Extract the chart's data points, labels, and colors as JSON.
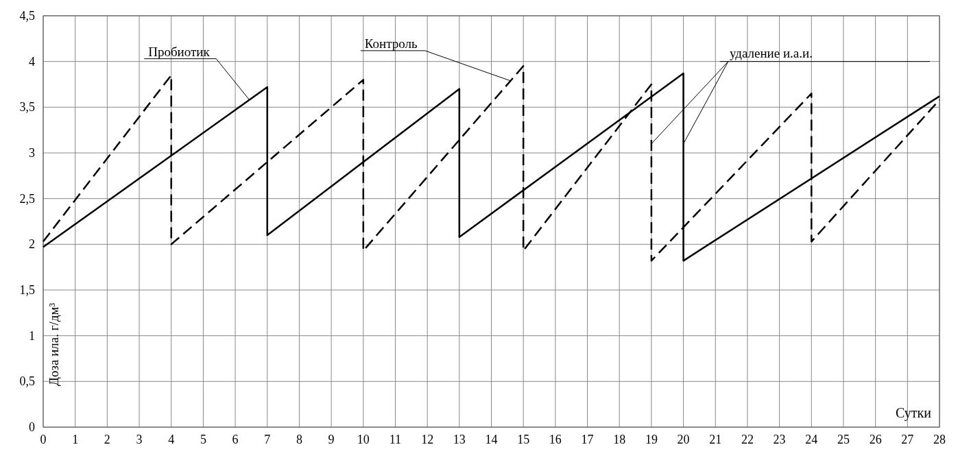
{
  "chart_data": {
    "type": "line",
    "xlabel": "Сутки",
    "ylabel": "Доза ила. г/дм³",
    "xlim": [
      0,
      28
    ],
    "ylim": [
      0,
      4.5
    ],
    "xticks": [
      0,
      1,
      2,
      3,
      4,
      5,
      6,
      7,
      8,
      9,
      10,
      11,
      12,
      13,
      14,
      15,
      16,
      17,
      18,
      19,
      20,
      21,
      22,
      23,
      24,
      25,
      26,
      27,
      28
    ],
    "yticks": [
      0,
      {
        "value": 0.5,
        "label": "0,5"
      },
      1,
      {
        "value": 1.5,
        "label": "1,5"
      },
      2,
      {
        "value": 2.5,
        "label": "2,5"
      },
      3,
      {
        "value": 3.5,
        "label": "3,5"
      },
      4,
      {
        "value": 4.5,
        "label": "4,5"
      }
    ],
    "grid": true,
    "series": [
      {
        "name": "Пробиотик",
        "color": "#000000",
        "line_style": "solid",
        "x": [
          0,
          7,
          7,
          13,
          13,
          20,
          20,
          28
        ],
        "values": [
          1.97,
          3.72,
          2.1,
          3.7,
          2.08,
          3.87,
          1.82,
          3.62
        ]
      },
      {
        "name": "Контроль",
        "color": "#000000",
        "line_style": "dashed",
        "x": [
          0,
          4,
          4,
          10,
          10,
          15,
          15,
          19,
          19,
          24,
          24,
          28
        ],
        "values": [
          2.03,
          3.85,
          2.0,
          3.8,
          1.93,
          3.95,
          1.93,
          3.75,
          1.82,
          3.65,
          2.03,
          3.58
        ]
      }
    ],
    "annotations": [
      {
        "text": "удаление и.а.и.",
        "x": 19,
        "y": 3.1
      }
    ]
  }
}
